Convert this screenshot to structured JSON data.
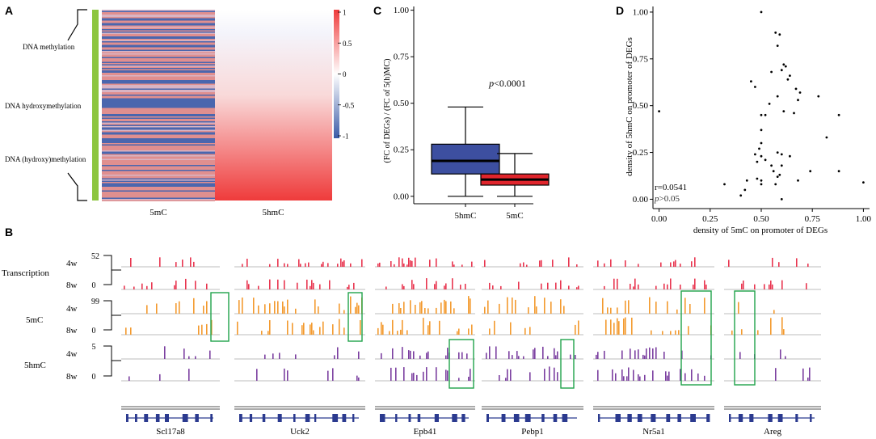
{
  "panels": {
    "A": {
      "label": "A",
      "row_labels": [
        "DNA methylation",
        "DNA hydroxymethylation",
        "DNA (hydroxy)methylation"
      ],
      "columns": [
        "5mC",
        "5hmC"
      ],
      "colorbar": {
        "ticks": [
          "1",
          "0.5",
          "0",
          "-0.5",
          "-1"
        ],
        "values": [
          1,
          0.5,
          0,
          -0.5,
          -1
        ],
        "high_color": "#ef3b3b",
        "mid_color": "#ffffff",
        "low_color": "#3a5ba7"
      }
    },
    "B": {
      "label": "B",
      "track_groups": [
        {
          "name": "Transcription",
          "rows": [
            "4w",
            "8w"
          ],
          "scale_top": "52",
          "scale_bottom": "0",
          "color": "#e8354f"
        },
        {
          "name": "5mC",
          "rows": [
            "4w",
            "8w"
          ],
          "scale_top": "99",
          "scale_bottom": "0",
          "color": "#f39a2e"
        },
        {
          "name": "5hmC",
          "rows": [
            "4w",
            "8w"
          ],
          "scale_top": "5",
          "scale_bottom": "0",
          "color": "#7b3fa0"
        }
      ],
      "genes": [
        "Scl17a8",
        "Uck2",
        "Epb41",
        "Pebp1",
        "Nr5a1",
        "Areg"
      ],
      "highlight_color": "#1fa34a"
    },
    "C": {
      "label": "C",
      "ylabel": "(FC of DEGs) / (FC of 5(h)MC)",
      "annotation": "p<0.0001",
      "annotation_p": "p",
      "annotation_rest": "<0.0001"
    },
    "D": {
      "label": "D",
      "xlabel": "density of 5mC on promoter of DEGs",
      "ylabel": "density of 5hmC on promoter of DEGs",
      "r_text": "r=0.0541",
      "p_text": "p>0.05",
      "p_p": "p",
      "p_rest": ">0.05"
    }
  },
  "chart_data": [
    {
      "type": "box",
      "title": "",
      "xlabel": "",
      "ylabel": "(FC of DEGs) / (FC of 5(h)MC)",
      "categories": [
        "5hmC",
        "5mC"
      ],
      "colors": [
        "#3d4fa0",
        "#e0252c"
      ],
      "ylim": [
        -0.04,
        1.02
      ],
      "yticks": [
        0.0,
        0.25,
        0.5,
        0.75,
        1.0
      ],
      "ytick_labels": [
        "0.00",
        "0.25",
        "0.50",
        "0.75",
        "1.00"
      ],
      "boxes": [
        {
          "whisker_low": 0.0,
          "q1": 0.12,
          "median": 0.19,
          "q3": 0.28,
          "whisker_high": 0.48
        },
        {
          "whisker_low": 0.0,
          "q1": 0.06,
          "median": 0.09,
          "q3": 0.12,
          "whisker_high": 0.23
        }
      ]
    },
    {
      "type": "scatter",
      "title": "",
      "xlabel": "density of 5mC on promoter of DEGs",
      "ylabel": "density of 5hmC on promoter of DEGs",
      "xlim": [
        -0.03,
        1.03
      ],
      "ylim": [
        -0.05,
        1.03
      ],
      "xticks": [
        0.0,
        0.25,
        0.5,
        0.75,
        1.0
      ],
      "xtick_labels": [
        "0.00",
        "0.25",
        "0.50",
        "0.75",
        "1.00"
      ],
      "yticks": [
        0.0,
        0.25,
        0.5,
        0.75,
        1.0
      ],
      "ytick_labels": [
        "0.00",
        "0.25",
        "0.50",
        "0.75",
        "1.00"
      ],
      "points": [
        [
          0.0,
          0.47
        ],
        [
          0.5,
          1.0
        ],
        [
          0.57,
          0.89
        ],
        [
          0.59,
          0.88
        ],
        [
          0.58,
          0.82
        ],
        [
          0.61,
          0.72
        ],
        [
          0.62,
          0.71
        ],
        [
          0.55,
          0.68
        ],
        [
          0.6,
          0.69
        ],
        [
          0.64,
          0.66
        ],
        [
          0.63,
          0.64
        ],
        [
          0.45,
          0.63
        ],
        [
          0.47,
          0.6
        ],
        [
          0.67,
          0.59
        ],
        [
          0.69,
          0.57
        ],
        [
          0.78,
          0.55
        ],
        [
          0.58,
          0.55
        ],
        [
          0.68,
          0.53
        ],
        [
          0.54,
          0.51
        ],
        [
          0.61,
          0.47
        ],
        [
          0.5,
          0.45
        ],
        [
          0.52,
          0.45
        ],
        [
          0.66,
          0.46
        ],
        [
          0.88,
          0.45
        ],
        [
          0.82,
          0.33
        ],
        [
          0.5,
          0.37
        ],
        [
          0.5,
          0.3
        ],
        [
          0.49,
          0.27
        ],
        [
          0.47,
          0.24
        ],
        [
          0.5,
          0.23
        ],
        [
          0.58,
          0.25
        ],
        [
          0.6,
          0.24
        ],
        [
          0.64,
          0.23
        ],
        [
          0.52,
          0.21
        ],
        [
          0.48,
          0.2
        ],
        [
          0.88,
          0.15
        ],
        [
          0.74,
          0.15
        ],
        [
          0.55,
          0.18
        ],
        [
          0.6,
          0.18
        ],
        [
          0.56,
          0.15
        ],
        [
          0.59,
          0.13
        ],
        [
          0.58,
          0.12
        ],
        [
          0.48,
          0.11
        ],
        [
          0.5,
          0.1
        ],
        [
          0.43,
          0.1
        ],
        [
          0.68,
          0.1
        ],
        [
          0.57,
          0.08
        ],
        [
          0.5,
          0.08
        ],
        [
          0.32,
          0.08
        ],
        [
          0.42,
          0.05
        ],
        [
          0.4,
          0.02
        ],
        [
          0.6,
          0.0
        ],
        [
          1.0,
          0.09
        ]
      ]
    }
  ]
}
